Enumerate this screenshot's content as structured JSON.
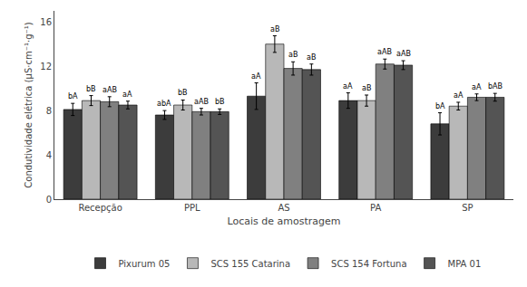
{
  "chart_data": {
    "type": "bar",
    "xlabel": "Locais de amostragem",
    "ylabel": "Condutividade elétrica (µS·cm⁻¹·g⁻¹)",
    "categories": [
      "Recepção",
      "PPL",
      "AS",
      "PA",
      "SP"
    ],
    "series": [
      {
        "name": "Pixurum 05",
        "color": "#3c3c3c",
        "values": [
          8.1,
          7.6,
          9.3,
          8.9,
          6.8
        ],
        "errors": [
          0.55,
          0.4,
          1.2,
          0.7,
          1.0
        ],
        "labels": [
          "bA",
          "abA",
          "aA",
          "aA",
          "bA"
        ]
      },
      {
        "name": "SCS 155 Catarina",
        "color": "#b8b8b8",
        "values": [
          8.9,
          8.5,
          14.0,
          8.9,
          8.4
        ],
        "errors": [
          0.45,
          0.45,
          0.75,
          0.5,
          0.35
        ],
        "labels": [
          "bB",
          "bB",
          "aB",
          "aB",
          "aA"
        ]
      },
      {
        "name": "SCS 154 Fortuna",
        "color": "#808080",
        "values": [
          8.8,
          7.9,
          11.8,
          12.2,
          9.2
        ],
        "errors": [
          0.45,
          0.3,
          0.6,
          0.45,
          0.3
        ],
        "labels": [
          "aAB",
          "aAB",
          "aB",
          "aAB",
          "aA"
        ]
      },
      {
        "name": "MPA 01",
        "color": "#545454",
        "values": [
          8.5,
          7.9,
          11.7,
          12.1,
          9.2
        ],
        "errors": [
          0.35,
          0.25,
          0.5,
          0.4,
          0.35
        ],
        "labels": [
          "aA",
          "bB",
          "aB",
          "aAB",
          "bAB"
        ]
      }
    ],
    "ylim": [
      0,
      17
    ],
    "yticks": [
      0,
      4,
      8,
      12,
      16
    ],
    "grid": false,
    "legend": "bottom"
  }
}
